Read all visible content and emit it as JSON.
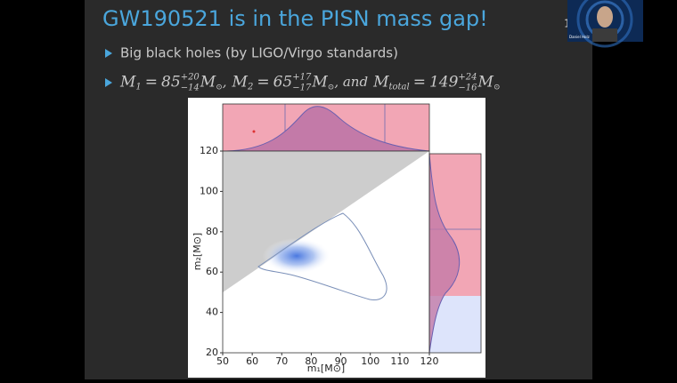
{
  "slide": {
    "title": "GW190521 is in the PISN mass gap!",
    "page_number": "1",
    "speaker": "Daniel Holz",
    "bullets": [
      "Big black holes (by LIGO/Virgo standards)"
    ],
    "masses": [
      {
        "symbol": "M",
        "index": "1",
        "value": "85",
        "plus": "+20",
        "minus": "−14",
        "unit": "M",
        "unit_index": "⊙",
        "after": ","
      },
      {
        "symbol": "M",
        "index": "2",
        "value": "65",
        "plus": "+17",
        "minus": "−17",
        "unit": "M",
        "unit_index": "⊙",
        "after": ", and"
      },
      {
        "symbol": "M",
        "index": "total",
        "value": "149",
        "plus": "+24",
        "minus": "−16",
        "unit": "M",
        "unit_index": "⊙",
        "after": ""
      }
    ],
    "equals": "=",
    "figure": {
      "x_label": "m₁[M⊙]",
      "y_label": "m₂[M⊙]",
      "xlim": [
        50,
        120
      ],
      "ylim": [
        20,
        120
      ],
      "xticks": [
        50,
        60,
        70,
        80,
        90,
        100,
        110,
        120
      ],
      "yticks": [
        20,
        40,
        60,
        80,
        100,
        120
      ]
    }
  }
}
